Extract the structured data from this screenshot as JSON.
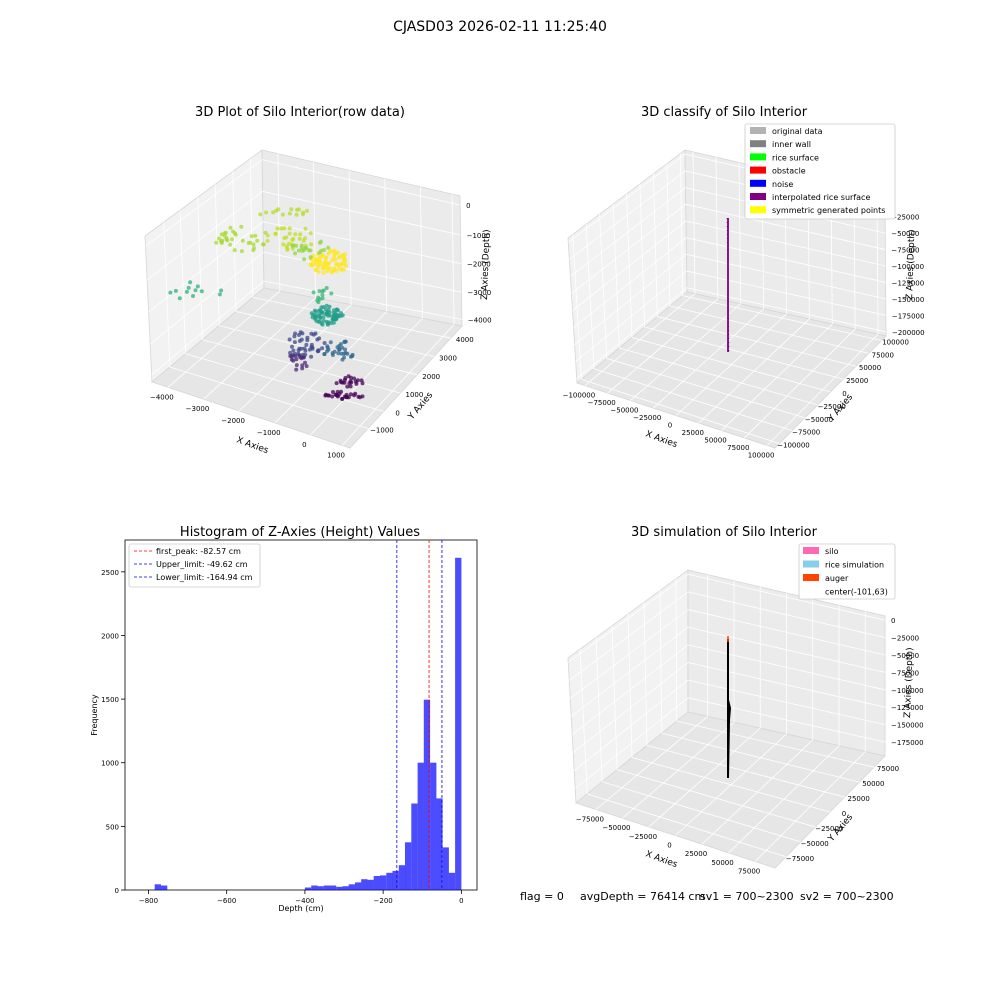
{
  "suptitle": "CJASD03 2026-02-11 11:25:40",
  "colors": {
    "original_data": "#b3b3b3",
    "inner_wall": "#808080",
    "rice_surface": "#00ff00",
    "obstacle": "#ff0000",
    "noise": "#0000ff",
    "interpolated_rice_surface": "#800080",
    "symmetric_generated_points": "#ffff00",
    "silo": "#ff69b4",
    "rice_simulation": "#87ceeb",
    "auger": "#ff4500",
    "hist_bar": "#0000ff",
    "first_peak": "#ff0000",
    "limits": "#0000ff"
  },
  "chart_data": [
    {
      "type": "scatter",
      "title": "3D Plot of Silo Interior(row data)",
      "xlabel": "X Axies",
      "ylabel": "Y Axies",
      "zlabel": "Z Axies (Depth)",
      "x_ticks": [
        "−4000",
        "−3000",
        "−2000",
        "−1000",
        "0",
        "1000"
      ],
      "y_ticks": [
        "−1000",
        "0",
        "1000",
        "2000",
        "3000",
        "4000"
      ],
      "z_ticks": [
        "0",
        "−1000",
        "−2000",
        "−3000",
        "−4000"
      ],
      "colormap": "viridis"
    },
    {
      "type": "scatter",
      "title": "3D classify of Silo Interior",
      "xlabel": "X Axies",
      "ylabel": "Y Axies",
      "zlabel": "Z Axies (Depth)",
      "x_ticks": [
        "−100000",
        "−75000",
        "−50000",
        "−25000",
        "0",
        "25000",
        "50000",
        "75000",
        "100000"
      ],
      "y_ticks": [
        "−100000",
        "−75000",
        "−50000",
        "−25000",
        "0",
        "25000",
        "50000",
        "75000",
        "100000"
      ],
      "z_ticks": [
        "0",
        "−25000",
        "−50000",
        "−75000",
        "−100000",
        "−125000",
        "−150000",
        "−175000",
        "−200000"
      ],
      "legend": [
        "original data",
        "inner wall",
        "rice surface",
        "obstacle",
        "noise",
        "interpolated rice surface",
        "symmetric generated points"
      ],
      "legend_position": "top-right"
    },
    {
      "type": "bar",
      "title": "Histogram of Z-Axies (Height) Values",
      "xlabel": "Depth (cm)",
      "ylabel": "Frequency",
      "xlim": [
        -860,
        40
      ],
      "ylim": [
        0,
        2750
      ],
      "x_ticks": [
        -800,
        -600,
        -400,
        -200,
        0
      ],
      "x_tick_labels": [
        "−800",
        "−600",
        "−400",
        "−200",
        "0"
      ],
      "y_ticks": [
        0,
        500,
        1000,
        1500,
        2000,
        2500
      ],
      "bin_width": 16,
      "bins": [
        {
          "x": -776,
          "v": 45
        },
        {
          "x": -760,
          "v": 35
        },
        {
          "x": -392,
          "v": 20
        },
        {
          "x": -376,
          "v": 35
        },
        {
          "x": -360,
          "v": 30
        },
        {
          "x": -344,
          "v": 35
        },
        {
          "x": -328,
          "v": 35
        },
        {
          "x": -312,
          "v": 25
        },
        {
          "x": -296,
          "v": 30
        },
        {
          "x": -280,
          "v": 45
        },
        {
          "x": -264,
          "v": 60
        },
        {
          "x": -248,
          "v": 85
        },
        {
          "x": -232,
          "v": 80
        },
        {
          "x": -216,
          "v": 110
        },
        {
          "x": -200,
          "v": 115
        },
        {
          "x": -184,
          "v": 135
        },
        {
          "x": -168,
          "v": 150
        },
        {
          "x": -152,
          "v": 195
        },
        {
          "x": -136,
          "v": 375
        },
        {
          "x": -120,
          "v": 680
        },
        {
          "x": -104,
          "v": 1000
        },
        {
          "x": -88,
          "v": 1495
        },
        {
          "x": -72,
          "v": 1000
        },
        {
          "x": -56,
          "v": 720
        },
        {
          "x": -40,
          "v": 335
        },
        {
          "x": -24,
          "v": 135
        },
        {
          "x": -8,
          "v": 2610
        }
      ],
      "lines": [
        {
          "label": "first_peak: -82.57 cm",
          "x": -82.57,
          "style": "first_peak"
        },
        {
          "label": "Upper_limit: -49.62 cm",
          "x": -49.62,
          "style": "limits"
        },
        {
          "label": "Lower_limit: -164.94 cm",
          "x": -164.94,
          "style": "limits"
        }
      ],
      "legend_position": "top-left"
    },
    {
      "type": "line",
      "title": "3D simulation of Silo Interior",
      "xlabel": "X Axies",
      "ylabel": "Y Axies",
      "zlabel": "Z Axies (Depth)",
      "x_ticks": [
        "−75000",
        "−50000",
        "−25000",
        "0",
        "25000",
        "50000",
        "75000"
      ],
      "y_ticks": [
        "−75000",
        "−50000",
        "−25000",
        "0",
        "25000",
        "50000",
        "75000"
      ],
      "z_ticks": [
        "0",
        "−25000",
        "−50000",
        "−75000",
        "−100000",
        "−125000",
        "−150000",
        "−175000"
      ],
      "legend": [
        "silo",
        "rice simulation",
        "auger",
        "center(-101,63)"
      ],
      "legend_position": "top-right"
    }
  ],
  "footer": {
    "flag": "flag = 0",
    "avg_depth": "avgDepth = 76414 cm",
    "sv1": "sv1 = 700~2300",
    "sv2": "sv2 = 700~2300"
  }
}
